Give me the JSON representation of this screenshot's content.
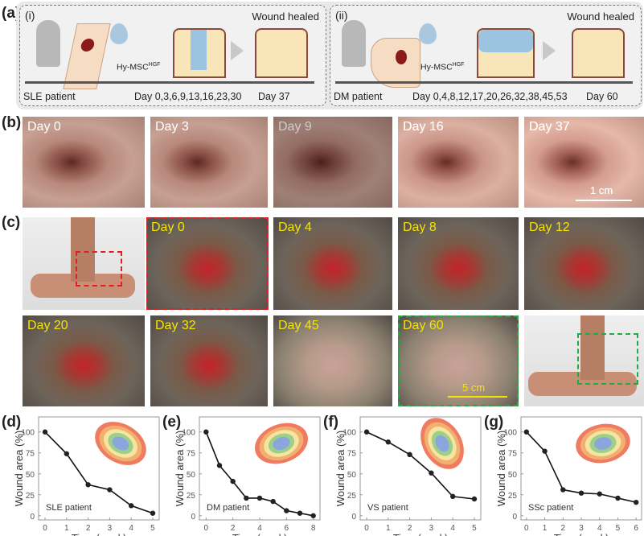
{
  "panel_a": {
    "label": "(a)",
    "left": {
      "label": "(i)",
      "title": "Wound healed",
      "treatment": "Hy-MSC",
      "treatment_sup": "HGF",
      "timeline": [
        "SLE patient",
        "Day 0,3,6,9,13,16,23,30",
        "Day 37"
      ]
    },
    "right": {
      "label": "(ii)",
      "title": "Wound healed",
      "treatment": "Hy-MSC",
      "treatment_sup": "HGF",
      "timeline": [
        "DM patient",
        "Day 0,4,8,12,17,20,26,32,38,45,53",
        "Day 60"
      ]
    }
  },
  "panel_b": {
    "label": "(b)",
    "photos": [
      "Day 0",
      "Day 3",
      "Day 9",
      "Day 16",
      "Day 37"
    ],
    "scale_bar": "1 cm"
  },
  "panel_c": {
    "label": "(c)",
    "row1": [
      "",
      "Day 0",
      "Day 4",
      "Day 8",
      "Day 12"
    ],
    "row2": [
      "Day 20",
      "Day 32",
      "Day 45",
      "Day 60",
      ""
    ],
    "scale_bar": "5 cm",
    "colors": {
      "label": "#f5e400",
      "highlight_red": "#e02020",
      "highlight_green": "#22aa44"
    }
  },
  "chart_data": [
    {
      "panel": "(d)",
      "type": "line",
      "annotation": "SLE patient",
      "xlabel": "Time (week)",
      "ylabel": "Wound area (%)",
      "x": [
        0,
        1,
        2,
        3,
        4,
        5
      ],
      "y": [
        100,
        74,
        37,
        31,
        12,
        3
      ],
      "xlim": [
        -0.3,
        5.3
      ],
      "ylim": [
        -5,
        118
      ],
      "yticks": [
        0,
        25,
        50,
        75,
        100
      ],
      "xticks": [
        0,
        1,
        2,
        3,
        4,
        5
      ]
    },
    {
      "panel": "(e)",
      "type": "line",
      "annotation": "DM patient",
      "xlabel": "Time (week)",
      "ylabel": "Wound area (%)",
      "x": [
        0,
        1,
        2,
        3,
        4,
        5,
        6,
        7,
        8
      ],
      "y": [
        100,
        60,
        41,
        21,
        21,
        17,
        6,
        3,
        0
      ],
      "xlim": [
        -0.5,
        8.5
      ],
      "ylim": [
        -5,
        118
      ],
      "yticks": [
        0,
        25,
        50,
        75,
        100
      ],
      "xticks": [
        0,
        2,
        4,
        6,
        8
      ]
    },
    {
      "panel": "(f)",
      "type": "line",
      "annotation": "VS patient",
      "xlabel": "Time (week)",
      "ylabel": "Wound area (%)",
      "x": [
        0,
        1,
        2,
        3,
        4,
        5
      ],
      "y": [
        100,
        88,
        73,
        51,
        23,
        20
      ],
      "xlim": [
        -0.3,
        5.3
      ],
      "ylim": [
        -5,
        118
      ],
      "yticks": [
        0,
        25,
        50,
        75,
        100
      ],
      "xticks": [
        0,
        1,
        2,
        3,
        4,
        5
      ]
    },
    {
      "panel": "(g)",
      "type": "line",
      "annotation": "SSc patient",
      "xlabel": "Time (week)",
      "ylabel": "Wound area (%)",
      "x": [
        0,
        1,
        2,
        3,
        4,
        5,
        6
      ],
      "y": [
        100,
        77,
        31,
        27,
        26,
        21,
        16
      ],
      "xlim": [
        -0.3,
        6.3
      ],
      "ylim": [
        -5,
        118
      ],
      "yticks": [
        0,
        25,
        50,
        75,
        100
      ],
      "xticks": [
        0,
        1,
        2,
        3,
        4,
        5,
        6
      ]
    }
  ]
}
